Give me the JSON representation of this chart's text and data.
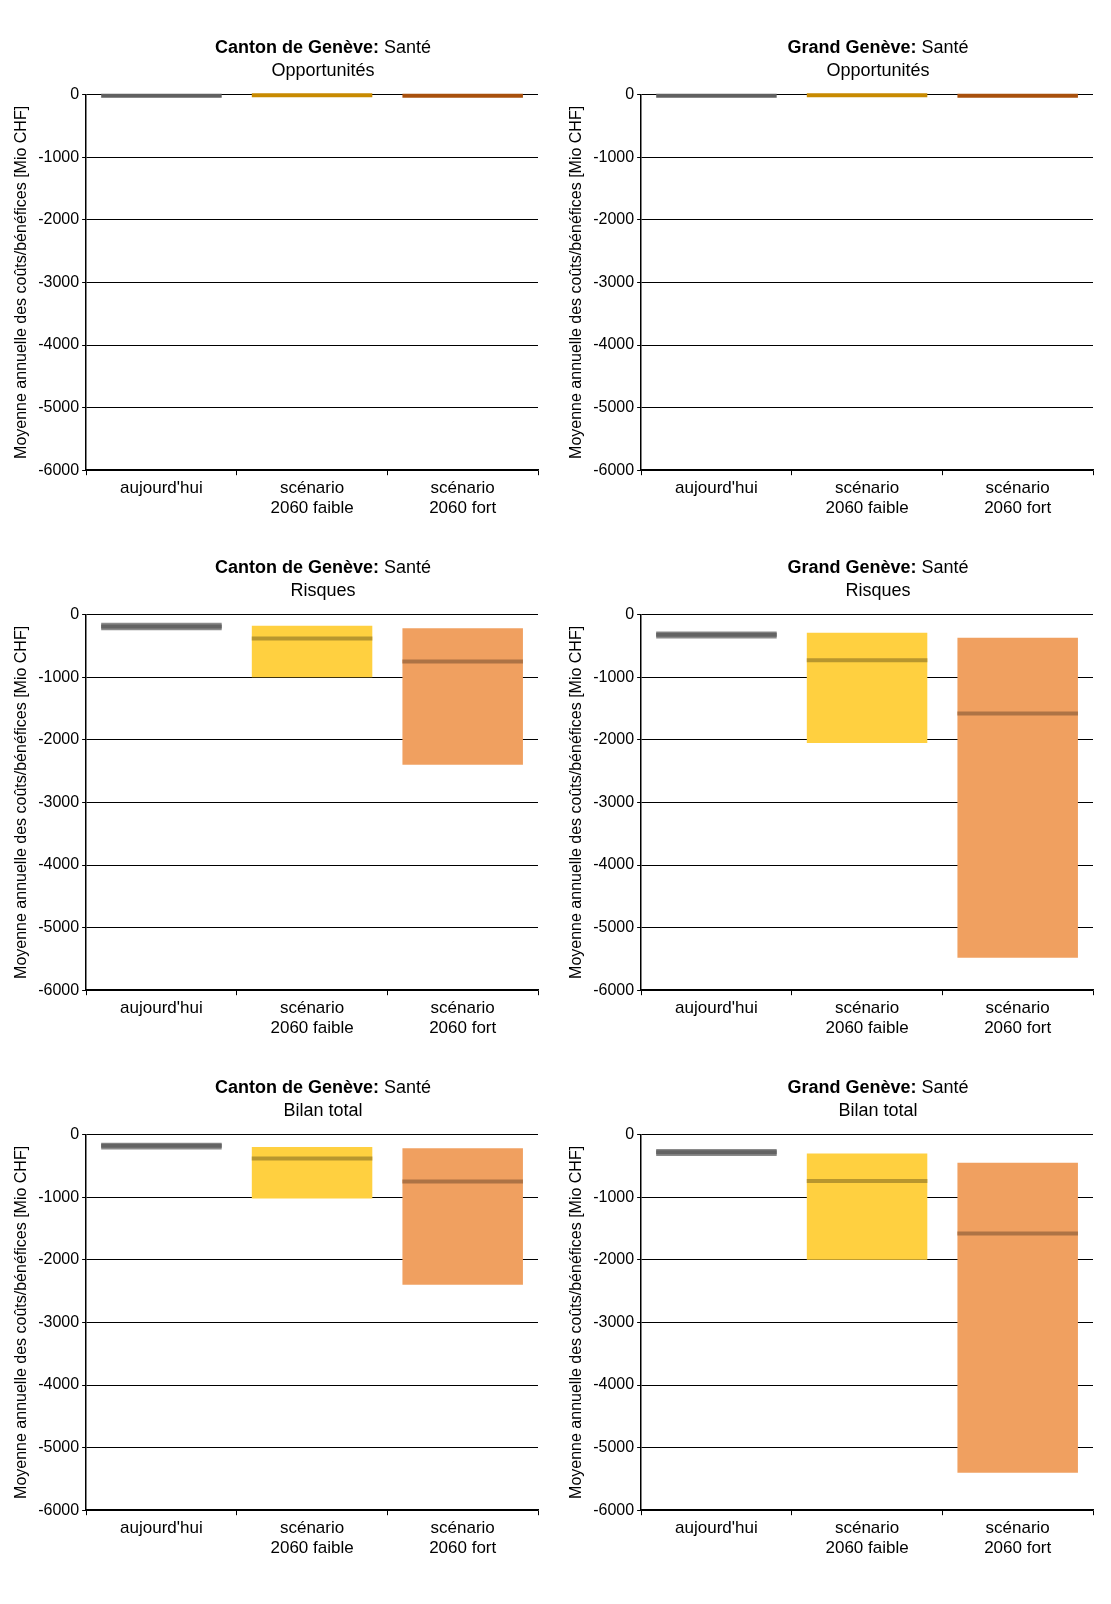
{
  "chart_data": [
    {
      "type": "box",
      "title": "Canton de Genève: Santé",
      "subtitle": "Opportunités",
      "ylabel": "Moyenne annuelle des coûts/bénéfices [Mio CHF]",
      "categories": [
        "aujourd'hui",
        "scénario\n2060 faible",
        "scénario\n2060 fort"
      ],
      "ylim": [
        -6000,
        0
      ],
      "yticks": [
        0,
        -1000,
        -2000,
        -3000,
        -4000,
        -5000,
        -6000
      ],
      "grid": "y",
      "colors": [
        "#606060",
        "#c88a00",
        "#a8500c"
      ],
      "boxes": [
        {
          "low": -20,
          "q1": -20,
          "median": -20,
          "q3": -20,
          "high": -20
        },
        {
          "low": -10,
          "q1": -10,
          "median": -10,
          "q3": -10,
          "high": -10
        },
        {
          "low": -20,
          "q1": -20,
          "median": -20,
          "q3": -20,
          "high": -20
        }
      ]
    },
    {
      "type": "box",
      "title": "Grand Genève: Santé",
      "subtitle": "Opportunités",
      "ylabel": "Moyenne annuelle des coûts/bénéfices [Mio CHF]",
      "categories": [
        "aujourd'hui",
        "scénario\n2060 faible",
        "scénario\n2060 fort"
      ],
      "ylim": [
        -6000,
        0
      ],
      "yticks": [
        0,
        -1000,
        -2000,
        -3000,
        -4000,
        -5000,
        -6000
      ],
      "grid": "y",
      "colors": [
        "#606060",
        "#c88a00",
        "#a8500c"
      ],
      "boxes": [
        {
          "low": -20,
          "q1": -20,
          "median": -20,
          "q3": -20,
          "high": -20
        },
        {
          "low": -10,
          "q1": -10,
          "median": -10,
          "q3": -10,
          "high": -10
        },
        {
          "low": -20,
          "q1": -20,
          "median": -20,
          "q3": -20,
          "high": -20
        }
      ]
    },
    {
      "type": "box",
      "title": "Canton de Genève: Santé",
      "subtitle": "Risques",
      "ylabel": "Moyenne annuelle des coûts/bénéfices [Mio CHF]",
      "categories": [
        "aujourd'hui",
        "scénario\n2060 faible",
        "scénario\n2060 fort"
      ],
      "ylim": [
        -6000,
        0
      ],
      "yticks": [
        0,
        -1000,
        -2000,
        -3000,
        -4000,
        -5000,
        -6000
      ],
      "grid": "y",
      "colors": [
        "#8a8a8a",
        "#ffd040",
        "#f0a060"
      ],
      "boxes": [
        {
          "low": -250,
          "q1": -250,
          "median": -190,
          "q3": -130,
          "high": -130
        },
        {
          "low": -1000,
          "q1": -1000,
          "median": -380,
          "q3": -180,
          "high": -180
        },
        {
          "low": -2400,
          "q1": -2400,
          "median": -750,
          "q3": -220,
          "high": -220
        }
      ]
    },
    {
      "type": "box",
      "title": "Grand Genève: Santé",
      "subtitle": "Risques",
      "ylabel": "Moyenne annuelle des coûts/bénéfices [Mio CHF]",
      "categories": [
        "aujourd'hui",
        "scénario\n2060 faible",
        "scénario\n2060 fort"
      ],
      "ylim": [
        -6000,
        0
      ],
      "yticks": [
        0,
        -1000,
        -2000,
        -3000,
        -4000,
        -5000,
        -6000
      ],
      "grid": "y",
      "colors": [
        "#8a8a8a",
        "#ffd040",
        "#f0a060"
      ],
      "boxes": [
        {
          "low": -380,
          "q1": -380,
          "median": -320,
          "q3": -270,
          "high": -270
        },
        {
          "low": -2050,
          "q1": -2050,
          "median": -730,
          "q3": -290,
          "high": -290
        },
        {
          "low": -5480,
          "q1": -5480,
          "median": -1580,
          "q3": -370,
          "high": -370
        }
      ]
    },
    {
      "type": "box",
      "title": "Canton de Genève: Santé",
      "subtitle": "Bilan total",
      "ylabel": "Moyenne annuelle des coûts/bénéfices [Mio CHF]",
      "categories": [
        "aujourd'hui",
        "scénario\n2060 faible",
        "scénario\n2060 fort"
      ],
      "ylim": [
        -6000,
        0
      ],
      "yticks": [
        0,
        -1000,
        -2000,
        -3000,
        -4000,
        -5000,
        -6000
      ],
      "grid": "y",
      "colors": [
        "#8a8a8a",
        "#ffd040",
        "#f0a060"
      ],
      "boxes": [
        {
          "low": -240,
          "q1": -240,
          "median": -180,
          "q3": -130,
          "high": -130
        },
        {
          "low": -1020,
          "q1": -1020,
          "median": -380,
          "q3": -200,
          "high": -200
        },
        {
          "low": -2400,
          "q1": -2400,
          "median": -750,
          "q3": -220,
          "high": -220
        }
      ]
    },
    {
      "type": "box",
      "title": "Grand Genève: Santé",
      "subtitle": "Bilan total",
      "ylabel": "Moyenne annuelle des coûts/bénéfices [Mio CHF]",
      "categories": [
        "aujourd'hui",
        "scénario\n2060 faible",
        "scénario\n2060 fort"
      ],
      "ylim": [
        -6000,
        0
      ],
      "yticks": [
        0,
        -1000,
        -2000,
        -3000,
        -4000,
        -5000,
        -6000
      ],
      "grid": "y",
      "colors": [
        "#8a8a8a",
        "#ffd040",
        "#f0a060"
      ],
      "boxes": [
        {
          "low": -340,
          "q1": -340,
          "median": -280,
          "q3": -230,
          "high": -230
        },
        {
          "low": -2000,
          "q1": -2000,
          "median": -740,
          "q3": -300,
          "high": -300
        },
        {
          "low": -5400,
          "q1": -5400,
          "median": -1580,
          "q3": -450,
          "high": -450
        }
      ]
    }
  ]
}
